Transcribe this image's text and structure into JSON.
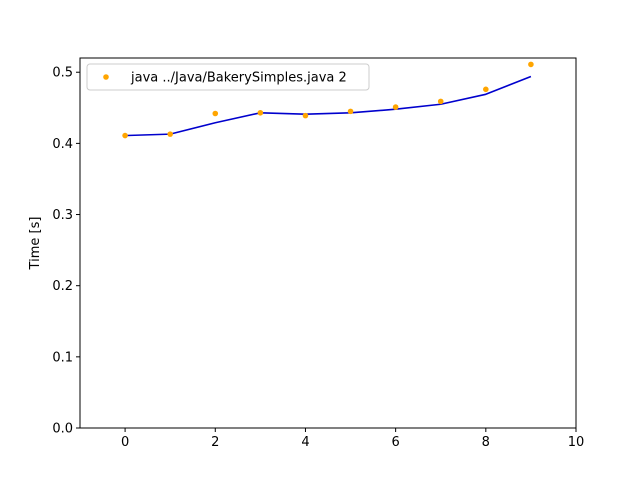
{
  "chart_data": {
    "type": "scatter",
    "title": "",
    "xlabel": "",
    "ylabel": "Time [s]",
    "xlim": [
      -1,
      10
    ],
    "ylim": [
      0,
      0.52
    ],
    "xticks": [
      0,
      2,
      4,
      6,
      8,
      10
    ],
    "yticks": [
      0.0,
      0.1,
      0.2,
      0.3,
      0.4,
      0.5
    ],
    "xtick_labels": [
      "0",
      "2",
      "4",
      "6",
      "8",
      "10"
    ],
    "ytick_labels": [
      "0.0",
      "0.1",
      "0.2",
      "0.3",
      "0.4",
      "0.5"
    ],
    "grid": false,
    "legend_position": "top-left",
    "series": [
      {
        "name": "java ../Java/BakerySimples.java 2",
        "kind": "scatter",
        "color": "#ffa500",
        "x": [
          0,
          1,
          2,
          3,
          4,
          5,
          6,
          7,
          8,
          9
        ],
        "y": [
          0.411,
          0.413,
          0.442,
          0.443,
          0.439,
          0.445,
          0.451,
          0.459,
          0.476,
          0.511
        ]
      },
      {
        "kind": "line",
        "color": "#0000cd",
        "x": [
          0,
          1,
          2,
          3,
          4,
          5,
          6,
          7,
          8,
          9
        ],
        "y": [
          0.411,
          0.413,
          0.429,
          0.443,
          0.441,
          0.443,
          0.448,
          0.455,
          0.469,
          0.494
        ]
      }
    ]
  }
}
